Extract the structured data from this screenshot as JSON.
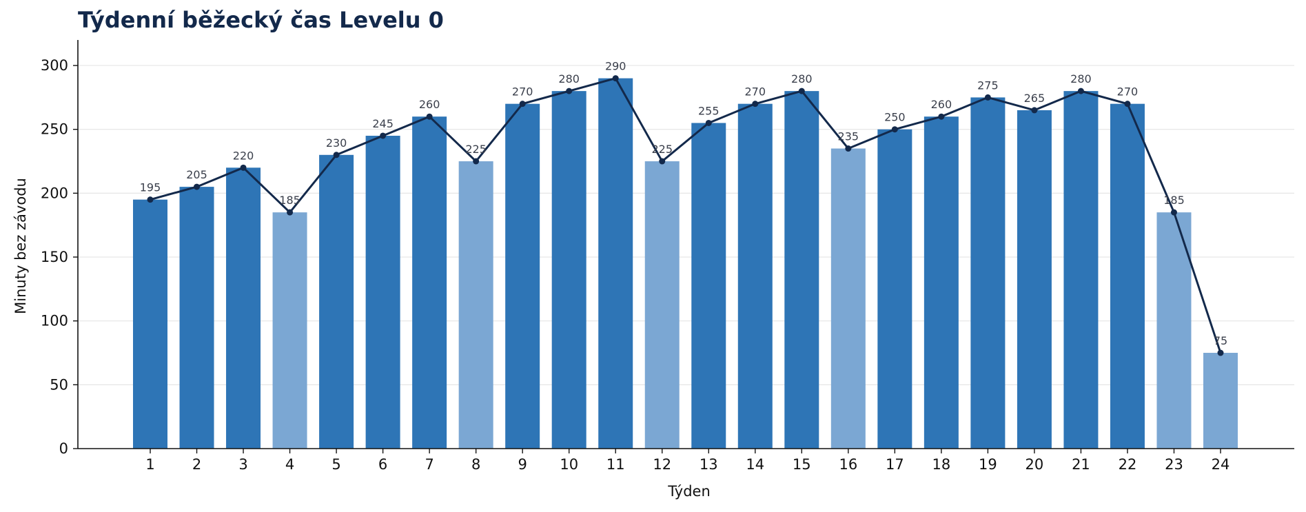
{
  "chart_data": {
    "type": "bar",
    "title": "Týdenní běžecký čas Levelu 0",
    "xlabel": "Týden",
    "ylabel": "Minuty bez závodu",
    "categories": [
      "1",
      "2",
      "3",
      "4",
      "5",
      "6",
      "7",
      "8",
      "9",
      "10",
      "11",
      "12",
      "13",
      "14",
      "15",
      "16",
      "17",
      "18",
      "19",
      "20",
      "21",
      "22",
      "23",
      "24"
    ],
    "values": [
      195,
      205,
      220,
      185,
      230,
      245,
      260,
      225,
      270,
      280,
      290,
      225,
      255,
      270,
      280,
      235,
      250,
      260,
      275,
      265,
      280,
      270,
      185,
      75
    ],
    "highlight_weeks": [
      "4",
      "8",
      "12",
      "16",
      "23",
      "24"
    ],
    "overlay_line": "same values drawn as connected line with markers",
    "ylim": [
      0,
      320
    ],
    "yticks": [
      0,
      50,
      100,
      150,
      200,
      250,
      300
    ],
    "grid": "horizontal",
    "legend": "none",
    "colors": {
      "bar": "#2e75b6",
      "bar_highlight": "#7ba7d3",
      "line": "#13294b",
      "grid": "#e6e6e6",
      "axis": "#111111",
      "title": "#13294b"
    }
  }
}
